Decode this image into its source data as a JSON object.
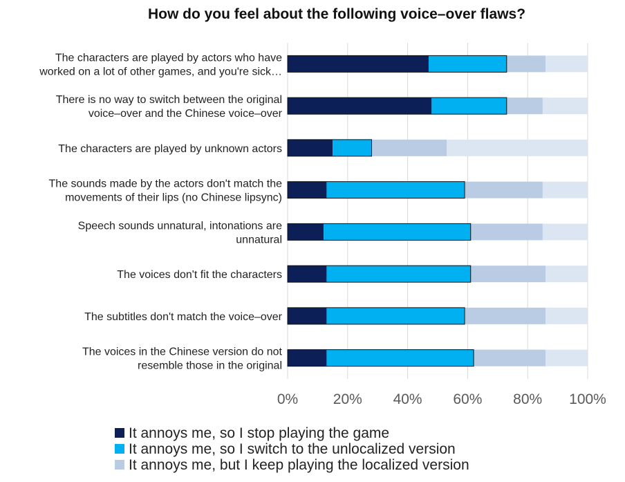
{
  "chart_data": {
    "type": "bar",
    "orientation": "horizontal",
    "stacked": true,
    "title": "How do you feel about the following voice–over flaws?",
    "xlabel": "",
    "ylabel": "",
    "xlim": [
      0,
      100
    ],
    "x_ticks": [
      "0%",
      "20%",
      "40%",
      "60%",
      "80%",
      "100%"
    ],
    "grid": true,
    "legend_position": "bottom",
    "categories": [
      [
        "The characters are played by actors who have",
        "worked on a lot of other games, and you're sick…"
      ],
      [
        "There is no way to switch between the original",
        "voice–over and the Chinese voice–over"
      ],
      [
        "The characters are played by unknown actors"
      ],
      [
        "The sounds made by the actors don't match the",
        "movements of their lips (no Chinese lipsync)"
      ],
      [
        "Speech sounds unnatural, intonations are",
        "unnatural"
      ],
      [
        "The voices don't fit the characters"
      ],
      [
        "The subtitles don't match the voice–over"
      ],
      [
        "The voices in the Chinese version do not",
        "resemble those in the original"
      ]
    ],
    "series": [
      {
        "name": "It annoys me, so I stop playing the game",
        "color": "#0c1f57",
        "values": [
          47,
          48,
          15,
          13,
          12,
          13,
          13,
          13
        ]
      },
      {
        "name": "It annoys me, so I switch to the unlocalized version",
        "color": "#00b0f0",
        "values": [
          26,
          25,
          13,
          46,
          49,
          48,
          46,
          49
        ]
      },
      {
        "name": "It annoys me, but I keep playing the localized version",
        "color": "#b9cce4",
        "values": [
          13,
          12,
          25,
          26,
          24,
          25,
          27,
          24
        ]
      }
    ],
    "remainder_color": "#dce6f2",
    "remainder_values": [
      14,
      15,
      47,
      15,
      15,
      14,
      14,
      14
    ]
  }
}
